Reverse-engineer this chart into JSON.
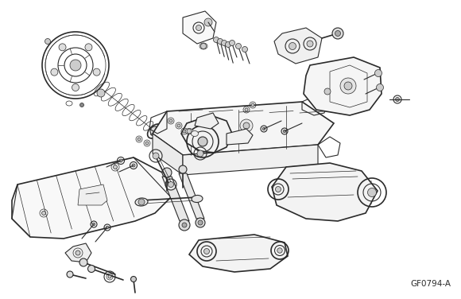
{
  "figure_id": "GF0794-A",
  "bg_color": "#ffffff",
  "line_color": "#2a2a2a",
  "fig_width": 5.8,
  "fig_height": 3.76,
  "dpi": 100,
  "figure_id_fontsize": 7.5
}
